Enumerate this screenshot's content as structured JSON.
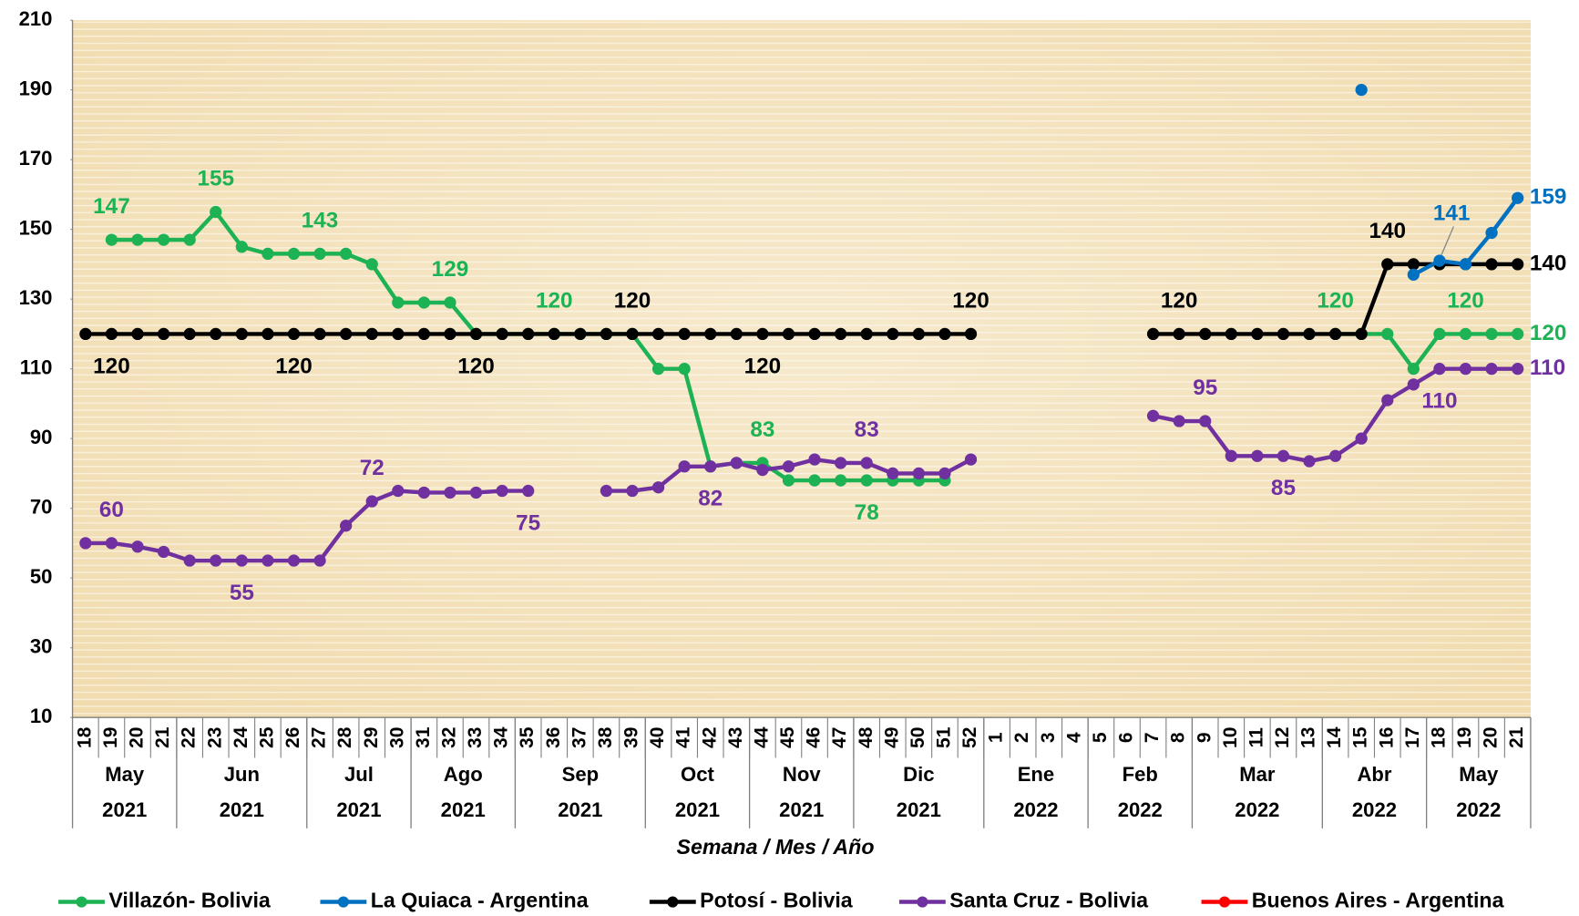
{
  "chart_data": {
    "type": "line",
    "x_title": "Semana / Mes / Año",
    "categories": [
      "18",
      "19",
      "20",
      "21",
      "22",
      "23",
      "24",
      "25",
      "26",
      "27",
      "28",
      "29",
      "30",
      "31",
      "32",
      "33",
      "34",
      "35",
      "36",
      "37",
      "38",
      "39",
      "40",
      "41",
      "42",
      "43",
      "44",
      "45",
      "46",
      "47",
      "48",
      "49",
      "50",
      "51",
      "52",
      "1",
      "2",
      "3",
      "4",
      "5",
      "6",
      "7",
      "8",
      "9",
      "10",
      "11",
      "12",
      "13",
      "14",
      "15",
      "16",
      "17",
      "18",
      "19",
      "20",
      "21"
    ],
    "groups": [
      {
        "month": "May",
        "year": "2021",
        "span": 4
      },
      {
        "month": "Jun",
        "year": "2021",
        "span": 5
      },
      {
        "month": "Jul",
        "year": "2021",
        "span": 4
      },
      {
        "month": "Ago",
        "year": "2021",
        "span": 4
      },
      {
        "month": "Sep",
        "year": "2021",
        "span": 5
      },
      {
        "month": "Oct",
        "year": "2021",
        "span": 4
      },
      {
        "month": "Nov",
        "year": "2021",
        "span": 4
      },
      {
        "month": "Dic",
        "year": "2021",
        "span": 5
      },
      {
        "month": "Ene",
        "year": "2022",
        "span": 4
      },
      {
        "month": "Feb",
        "year": "2022",
        "span": 4
      },
      {
        "month": "Mar",
        "year": "2022",
        "span": 5
      },
      {
        "month": "Abr",
        "year": "2022",
        "span": 4
      },
      {
        "month": "May",
        "year": "2022",
        "span": 4
      }
    ],
    "ylim": [
      10,
      210
    ],
    "yticks": [
      10,
      30,
      50,
      70,
      90,
      110,
      130,
      150,
      170,
      190,
      210
    ],
    "series": [
      {
        "name": "Villazón- Bolivia",
        "color": "#1db254",
        "values": [
          null,
          147,
          147,
          147,
          147,
          155,
          145,
          143,
          143,
          143,
          143,
          140,
          129,
          129,
          129,
          120,
          120,
          120,
          120,
          120,
          120,
          120,
          110,
          110,
          82,
          83,
          83,
          78,
          78,
          78,
          78,
          78,
          78,
          78,
          null,
          null,
          null,
          null,
          null,
          null,
          null,
          null,
          null,
          null,
          null,
          null,
          null,
          null,
          120,
          120,
          120,
          110,
          120,
          120,
          120,
          120
        ]
      },
      {
        "name": "La Quiaca - Argentina",
        "color": "#0070c0",
        "values": [
          null,
          null,
          null,
          null,
          null,
          null,
          null,
          null,
          null,
          null,
          null,
          null,
          null,
          null,
          null,
          null,
          null,
          null,
          null,
          null,
          null,
          null,
          null,
          null,
          null,
          null,
          null,
          null,
          null,
          null,
          null,
          null,
          null,
          null,
          null,
          null,
          null,
          null,
          null,
          null,
          null,
          null,
          null,
          null,
          null,
          null,
          null,
          null,
          null,
          190,
          null,
          137,
          141,
          140,
          149,
          159
        ]
      },
      {
        "name": "Potosí - Bolivia",
        "color": "#000000",
        "values": [
          120,
          120,
          120,
          120,
          120,
          120,
          120,
          120,
          120,
          120,
          120,
          120,
          120,
          120,
          120,
          120,
          120,
          120,
          120,
          120,
          120,
          120,
          120,
          120,
          120,
          120,
          120,
          120,
          120,
          120,
          120,
          120,
          120,
          120,
          120,
          null,
          null,
          null,
          null,
          null,
          null,
          120,
          120,
          120,
          120,
          120,
          120,
          120,
          120,
          120,
          140,
          140,
          140,
          140,
          140,
          140
        ]
      },
      {
        "name": "Santa Cruz - Bolivia",
        "color": "#7030a0",
        "values": [
          60,
          60,
          59,
          57.5,
          55,
          55,
          55,
          55,
          55,
          55,
          65,
          72,
          75,
          74.5,
          74.5,
          74.5,
          75,
          75,
          null,
          null,
          75,
          75,
          76,
          82,
          82,
          83,
          81,
          82,
          84,
          83,
          83,
          80,
          80,
          80,
          84,
          null,
          null,
          null,
          null,
          null,
          null,
          96.5,
          95,
          95,
          85,
          85,
          85,
          83.5,
          85,
          90,
          101,
          105.5,
          110,
          110,
          110,
          110
        ]
      },
      {
        "name": "Buenos Aires - Argentina",
        "color": "#ff0000",
        "values": [
          null,
          null,
          null,
          null,
          null,
          null,
          null,
          null,
          null,
          null,
          null,
          null,
          null,
          null,
          null,
          null,
          null,
          null,
          null,
          null,
          null,
          null,
          null,
          null,
          null,
          null,
          null,
          null,
          null,
          null,
          null,
          null,
          null,
          null,
          null,
          null,
          null,
          null,
          null,
          null,
          null,
          null,
          null,
          null,
          null,
          null,
          null,
          null,
          null,
          null,
          null,
          null,
          null,
          null,
          null,
          null
        ]
      }
    ]
  }
}
